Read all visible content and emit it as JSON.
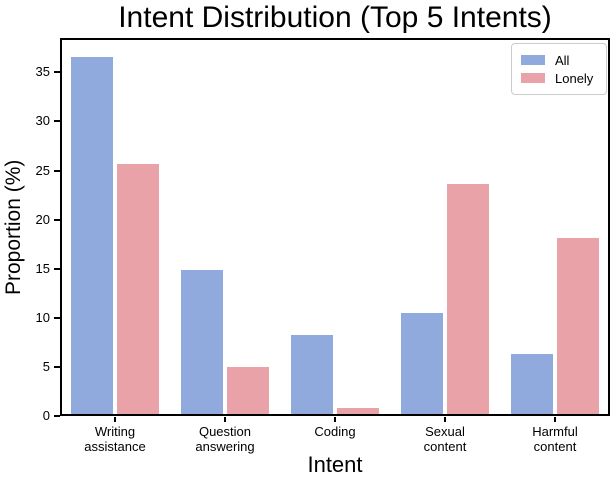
{
  "chart_data": {
    "type": "bar",
    "title": "Intent Distribution (Top 5 Intents)",
    "xlabel": "Intent",
    "ylabel": "Proportion (%)",
    "categories": [
      "Writing\nassistance",
      "Question\nanswering",
      "Coding",
      "Sexual\ncontent",
      "Harmful\ncontent"
    ],
    "series": [
      {
        "name": "All",
        "color": "#91aade",
        "values": [
          36.6,
          14.9,
          8.2,
          10.5,
          6.3
        ]
      },
      {
        "name": "Lonely",
        "color": "#e9a3a8",
        "values": [
          25.7,
          5.0,
          0.8,
          23.6,
          18.1
        ]
      }
    ],
    "ylim": [
      0,
      38.5
    ],
    "yticks": [
      0,
      5,
      10,
      15,
      20,
      25,
      30,
      35
    ],
    "legend_position": "upper right",
    "grid": false,
    "colors": {
      "axis": "#000000",
      "background": "#ffffff",
      "legend_border": "#cccccc"
    }
  }
}
